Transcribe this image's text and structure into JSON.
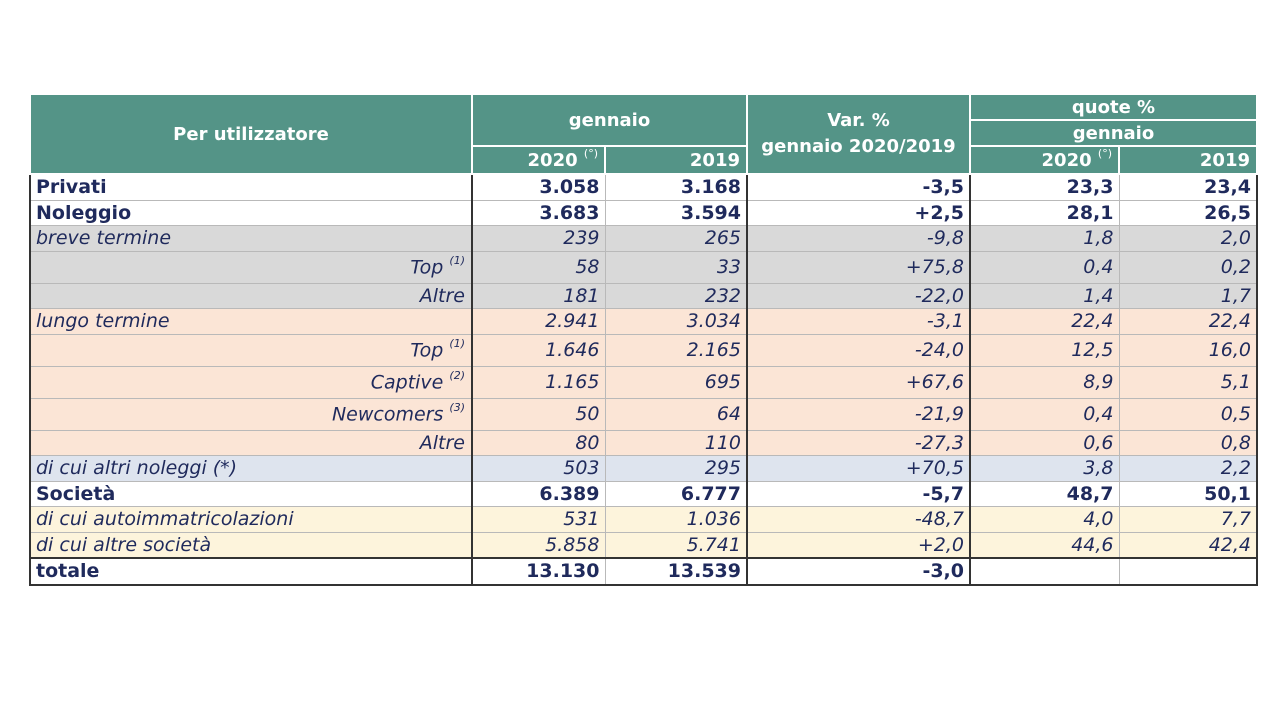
{
  "header": {
    "col_label": "Per utilizzatore",
    "group_gennaio": "gennaio",
    "var_line1": "Var. %",
    "var_line2": "gennaio 2020/2019",
    "quote": "quote %",
    "quote_sub": "gennaio",
    "y2020": "2020",
    "y2020_note": "(°)",
    "y2019": "2019",
    "q2020": "2020",
    "q2020_note": "(°)",
    "q2019": "2019"
  },
  "rows": [
    {
      "label": "Privati",
      "note": "",
      "v2020": "3.058",
      "v2019": "3.168",
      "var": "-3,5",
      "q2020": "23,3",
      "q2019": "23,4"
    },
    {
      "label": "Noleggio",
      "note": "",
      "v2020": "3.683",
      "v2019": "3.594",
      "var": "+2,5",
      "q2020": "28,1",
      "q2019": "26,5"
    },
    {
      "label": "breve termine",
      "note": "",
      "v2020": "239",
      "v2019": "265",
      "var": "-9,8",
      "q2020": "1,8",
      "q2019": "2,0"
    },
    {
      "label": "Top",
      "note": "(1)",
      "v2020": "58",
      "v2019": "33",
      "var": "+75,8",
      "q2020": "0,4",
      "q2019": "0,2"
    },
    {
      "label": "Altre",
      "note": "",
      "v2020": "181",
      "v2019": "232",
      "var": "-22,0",
      "q2020": "1,4",
      "q2019": "1,7"
    },
    {
      "label": "lungo termine",
      "note": "",
      "v2020": "2.941",
      "v2019": "3.034",
      "var": "-3,1",
      "q2020": "22,4",
      "q2019": "22,4"
    },
    {
      "label": "Top",
      "note": "(1)",
      "v2020": "1.646",
      "v2019": "2.165",
      "var": "-24,0",
      "q2020": "12,5",
      "q2019": "16,0"
    },
    {
      "label": "Captive",
      "note": "(2)",
      "v2020": "1.165",
      "v2019": "695",
      "var": "+67,6",
      "q2020": "8,9",
      "q2019": "5,1"
    },
    {
      "label": "Newcomers",
      "note": "(3)",
      "v2020": "50",
      "v2019": "64",
      "var": "-21,9",
      "q2020": "0,4",
      "q2019": "0,5"
    },
    {
      "label": "Altre",
      "note": "",
      "v2020": "80",
      "v2019": "110",
      "var": "-27,3",
      "q2020": "0,6",
      "q2019": "0,8"
    },
    {
      "label": "di cui altri noleggi (*)",
      "note": "",
      "v2020": "503",
      "v2019": "295",
      "var": "+70,5",
      "q2020": "3,8",
      "q2019": "2,2"
    },
    {
      "label": "Società",
      "note": "",
      "v2020": "6.389",
      "v2019": "6.777",
      "var": "-5,7",
      "q2020": "48,7",
      "q2019": "50,1"
    },
    {
      "label": "di cui autoimmatricolazioni",
      "note": "",
      "v2020": "531",
      "v2019": "1.036",
      "var": "-48,7",
      "q2020": "4,0",
      "q2019": "7,7"
    },
    {
      "label": "di cui altre società",
      "note": "",
      "v2020": "5.858",
      "v2019": "5.741",
      "var": "+2,0",
      "q2020": "44,6",
      "q2019": "42,4"
    },
    {
      "label": "totale",
      "note": "",
      "v2020": "13.130",
      "v2019": "13.539",
      "var": "-3,0",
      "q2020": "",
      "q2019": ""
    }
  ]
}
